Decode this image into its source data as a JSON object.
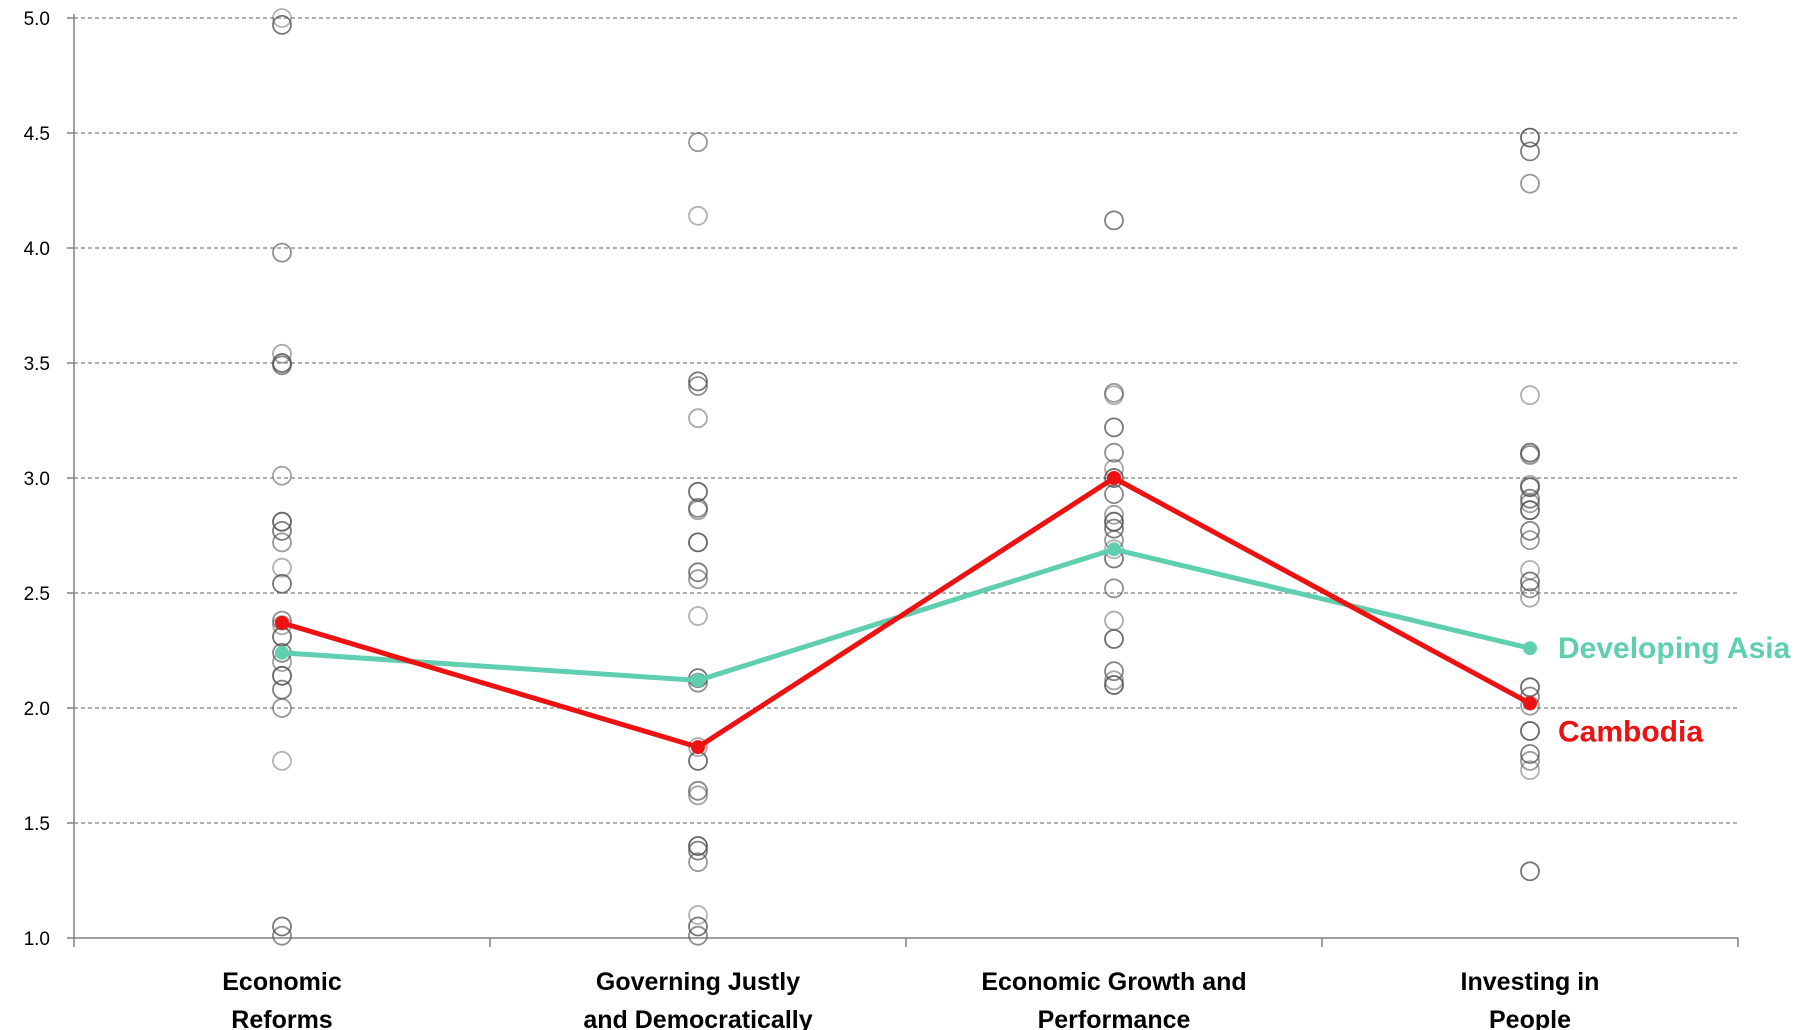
{
  "chart_data": {
    "type": "scatter",
    "title": "",
    "xlabel": "",
    "ylabel": "",
    "ylim": [
      1.0,
      5.0
    ],
    "y_ticks": [
      "1.0",
      "1.5",
      "2.0",
      "2.5",
      "3.0",
      "3.5",
      "4.0",
      "4.5",
      "5.0"
    ],
    "grid": "horizontal dashed",
    "categories": [
      [
        "Economic",
        "Reforms"
      ],
      [
        "Governing Justly",
        "and Democratically"
      ],
      [
        "Economic  Growth and",
        "Performance"
      ],
      [
        "Investing in",
        "People"
      ]
    ],
    "country_points": [
      [
        5.0,
        4.97,
        3.98,
        3.54,
        3.5,
        3.49,
        3.01,
        2.81,
        2.77,
        2.72,
        2.61,
        2.54,
        2.38,
        2.36,
        2.31,
        2.24,
        2.2,
        2.14,
        2.08,
        2.0,
        1.77,
        1.05,
        1.01
      ],
      [
        4.46,
        4.14,
        3.42,
        3.4,
        3.26,
        2.94,
        2.87,
        2.86,
        2.72,
        2.59,
        2.56,
        2.4,
        2.13,
        2.11,
        1.83,
        1.77,
        1.64,
        1.62,
        1.4,
        1.38,
        1.33,
        1.1,
        1.05,
        1.01
      ],
      [
        4.12,
        3.37,
        3.36,
        3.22,
        3.11,
        3.04,
        3.0,
        2.93,
        2.84,
        2.81,
        2.78,
        2.73,
        2.69,
        2.65,
        2.52,
        2.38,
        2.3,
        2.16,
        2.12,
        2.1
      ],
      [
        4.48,
        4.42,
        4.28,
        3.36,
        3.11,
        3.1,
        2.97,
        2.96,
        2.91,
        2.89,
        2.86,
        2.77,
        2.73,
        2.6,
        2.55,
        2.52,
        2.48,
        2.09,
        2.05,
        2.01,
        1.9,
        1.8,
        1.77,
        1.73,
        1.29
      ]
    ],
    "series": [
      {
        "name": "Developing Asia",
        "color": "#5fcfaf",
        "values": [
          2.24,
          2.12,
          2.69,
          2.26
        ]
      },
      {
        "name": "Cambodia",
        "color": "#ee1111",
        "values": [
          2.37,
          1.83,
          3.0,
          2.02
        ]
      }
    ],
    "colors": {
      "points": "#555555",
      "grid": "#808080",
      "axis": "#808080"
    }
  }
}
